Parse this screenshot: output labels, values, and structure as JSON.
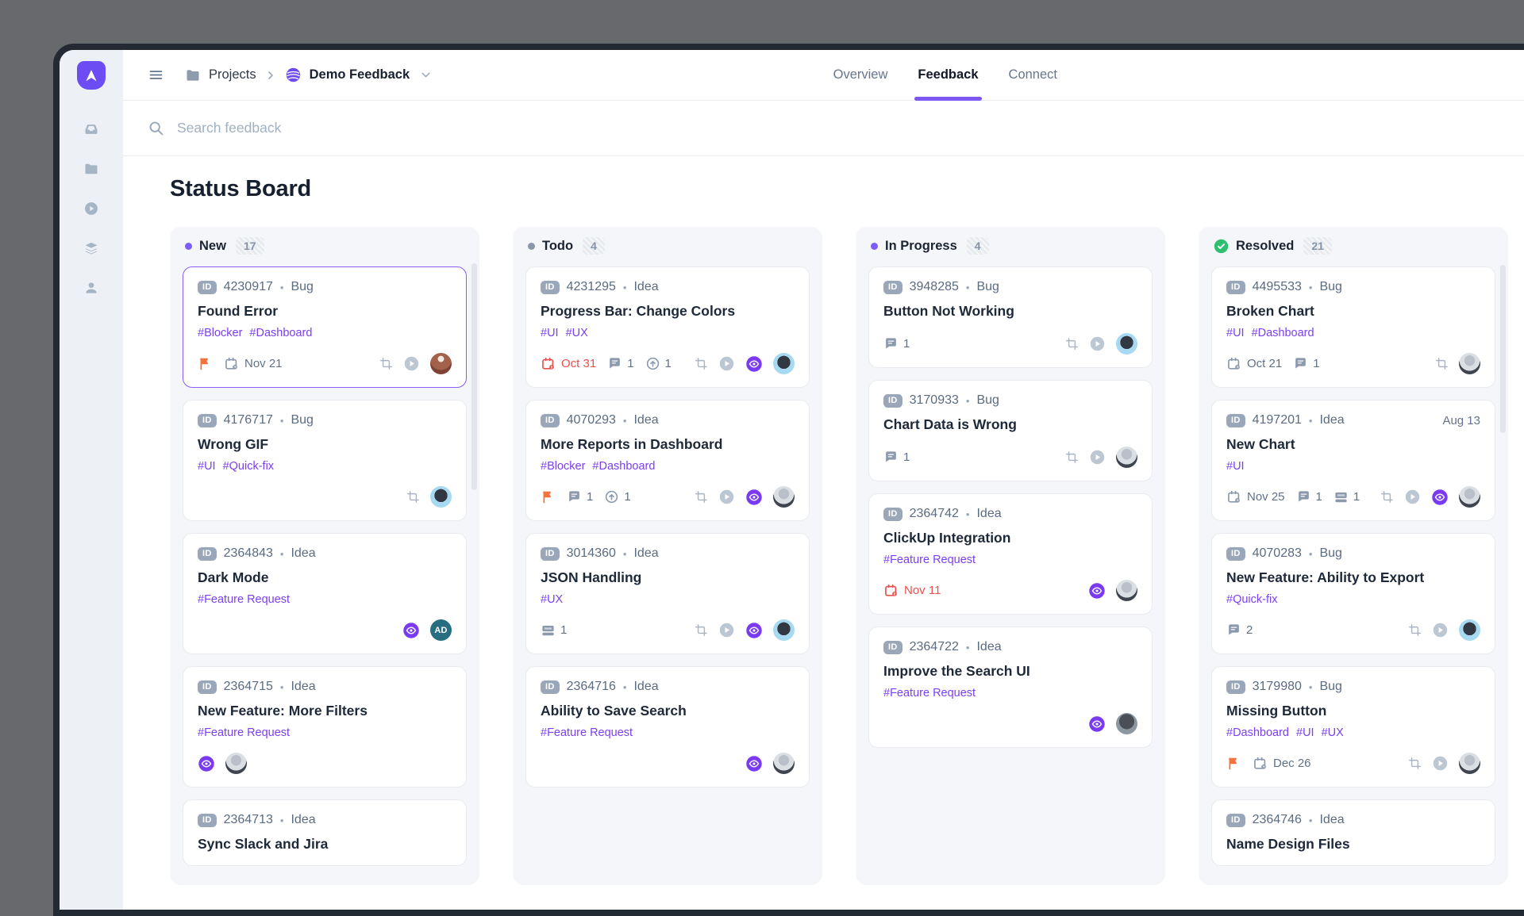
{
  "topbar": {
    "breadcrumb": {
      "root": "Projects",
      "project": "Demo Feedback"
    },
    "tabs": [
      {
        "label": "Overview",
        "active": false
      },
      {
        "label": "Feedback",
        "active": true
      },
      {
        "label": "Connect",
        "active": false
      }
    ]
  },
  "sidebar": {
    "logo_icon": "app-logo",
    "items": [
      {
        "icon": "inbox"
      },
      {
        "icon": "folder"
      },
      {
        "icon": "play-circle"
      },
      {
        "icon": "layers"
      },
      {
        "icon": "user"
      }
    ]
  },
  "search": {
    "placeholder": "Search feedback"
  },
  "colors": {
    "accent_purple": "#7b57f3",
    "tag_purple": "#7b3ff2",
    "flag_orange": "#f4723c",
    "overdue_red": "#e8504d",
    "resolved_green": "#2fbf71",
    "todo_dot_gray": "#8a97a9"
  },
  "board": {
    "title": "Status Board",
    "columns": [
      {
        "name": "New",
        "count": "17",
        "header_style": "dot",
        "dot_color": "#7c5cfa",
        "scrollbar": true,
        "cards": [
          {
            "id": "4230917",
            "type": "Bug",
            "title": "Found Error",
            "tags": [
              "#Blocker",
              "#Dashboard"
            ],
            "selected": true,
            "meta": [
              {
                "icon": "flag"
              },
              {
                "icon": "calendar",
                "tone": "gray",
                "text": "Nov 21"
              }
            ],
            "actions": [
              "frame",
              "play"
            ],
            "avatar": {
              "style": "knight"
            }
          },
          {
            "id": "4176717",
            "type": "Bug",
            "title": "Wrong GIF",
            "tags": [
              "#UI",
              "#Quick-fix"
            ],
            "meta": [],
            "actions": [
              "frame"
            ],
            "avatar": {
              "style": "marcus"
            }
          },
          {
            "id": "2364843",
            "type": "Idea",
            "title": "Dark Mode",
            "tags": [
              "#Feature Request"
            ],
            "meta": [],
            "actions": [
              "eye"
            ],
            "avatar": {
              "style": "initials",
              "initials": "AD"
            }
          },
          {
            "id": "2364715",
            "type": "Idea",
            "title": "New Feature: More Filters",
            "tags": [
              "#Feature Request"
            ],
            "meta": [],
            "actions": [
              "eye"
            ],
            "avatar": {
              "style": "suit"
            },
            "footer_align": "left"
          },
          {
            "id": "2364713",
            "type": "Idea",
            "title": "Sync Slack and Jira",
            "tags": [],
            "meta": [],
            "actions": [],
            "avatar": null,
            "truncated": true
          }
        ]
      },
      {
        "name": "Todo",
        "count": "4",
        "header_style": "dot",
        "dot_color": "#8a97a9",
        "scrollbar": false,
        "cards": [
          {
            "id": "4231295",
            "type": "Idea",
            "title": "Progress Bar: Change Colors",
            "tags": [
              "#UI",
              "#UX"
            ],
            "meta": [
              {
                "icon": "calendar",
                "tone": "red",
                "text": "Oct 31"
              },
              {
                "icon": "comment",
                "text": "1"
              },
              {
                "icon": "upvote",
                "text": "1"
              }
            ],
            "actions": [
              "frame",
              "play",
              "eye"
            ],
            "avatar": {
              "style": "marcus"
            }
          },
          {
            "id": "4070293",
            "type": "Idea",
            "title": "More Reports in Dashboard",
            "tags": [
              "#Blocker",
              "#Dashboard"
            ],
            "meta": [
              {
                "icon": "flag"
              },
              {
                "icon": "comment",
                "text": "1"
              },
              {
                "icon": "upvote",
                "text": "1"
              }
            ],
            "actions": [
              "frame",
              "play",
              "eye"
            ],
            "avatar": {
              "style": "suit"
            }
          },
          {
            "id": "3014360",
            "type": "Idea",
            "title": "JSON Handling",
            "tags": [
              "#UX"
            ],
            "meta": [
              {
                "icon": "screens",
                "text": "1"
              }
            ],
            "actions": [
              "frame",
              "play",
              "eye"
            ],
            "avatar": {
              "style": "marcus"
            }
          },
          {
            "id": "2364716",
            "type": "Idea",
            "title": "Ability to Save Search",
            "tags": [
              "#Feature Request"
            ],
            "meta": [],
            "actions": [
              "eye"
            ],
            "avatar": {
              "style": "suit"
            }
          }
        ]
      },
      {
        "name": "In Progress",
        "count": "4",
        "header_style": "dot",
        "dot_color": "#7c5cfa",
        "scrollbar": false,
        "cards": [
          {
            "id": "3948285",
            "type": "Bug",
            "title": "Button Not Working",
            "tags": [],
            "meta": [
              {
                "icon": "comment",
                "text": "1"
              }
            ],
            "actions": [
              "frame",
              "play"
            ],
            "avatar": {
              "style": "marcus"
            }
          },
          {
            "id": "3170933",
            "type": "Bug",
            "title": "Chart Data is Wrong",
            "tags": [],
            "meta": [
              {
                "icon": "comment",
                "text": "1"
              }
            ],
            "actions": [
              "frame",
              "play"
            ],
            "avatar": {
              "style": "suit"
            }
          },
          {
            "id": "2364742",
            "type": "Idea",
            "title": "ClickUp Integration",
            "tags": [
              "#Feature Request"
            ],
            "meta": [
              {
                "icon": "calendar",
                "tone": "red",
                "text": "Nov 11"
              }
            ],
            "actions": [
              "eye"
            ],
            "avatar": {
              "style": "suit"
            }
          },
          {
            "id": "2364722",
            "type": "Idea",
            "title": "Improve the Search UI",
            "tags": [
              "#Feature Request"
            ],
            "meta": [],
            "actions": [
              "eye"
            ],
            "avatar": {
              "style": "dark"
            }
          }
        ]
      },
      {
        "name": "Resolved",
        "count": "21",
        "header_style": "check",
        "check_color": "#2fbf71",
        "scrollbar": true,
        "cards": [
          {
            "id": "4495533",
            "type": "Bug",
            "title": "Broken Chart",
            "tags": [
              "#UI",
              "#Dashboard"
            ],
            "meta": [
              {
                "icon": "calendar",
                "tone": "gray",
                "text": "Oct 21"
              },
              {
                "icon": "comment",
                "text": "1"
              }
            ],
            "actions": [
              "frame"
            ],
            "avatar": {
              "style": "suit"
            }
          },
          {
            "id": "4197201",
            "type": "Idea",
            "title": "New Chart",
            "tags": [
              "#UI"
            ],
            "corner_date": "Aug 13",
            "meta": [
              {
                "icon": "calendar",
                "tone": "gray",
                "text": "Nov 25"
              },
              {
                "icon": "comment",
                "text": "1"
              },
              {
                "icon": "screens",
                "text": "1"
              }
            ],
            "actions": [
              "frame",
              "play",
              "eye"
            ],
            "avatar": {
              "style": "suit"
            }
          },
          {
            "id": "4070283",
            "type": "Bug",
            "title": "New Feature: Ability to Export",
            "tags": [
              "#Quick-fix"
            ],
            "meta": [
              {
                "icon": "comment",
                "text": "2"
              }
            ],
            "actions": [
              "frame",
              "play"
            ],
            "avatar": {
              "style": "marcus"
            }
          },
          {
            "id": "3179980",
            "type": "Bug",
            "title": "Missing Button",
            "tags": [
              "#Dashboard",
              "#UI",
              "#UX"
            ],
            "meta": [
              {
                "icon": "flag"
              },
              {
                "icon": "calendar",
                "tone": "gray",
                "text": "Dec 26"
              }
            ],
            "actions": [
              "frame",
              "play"
            ],
            "avatar": {
              "style": "suit"
            }
          },
          {
            "id": "2364746",
            "type": "Idea",
            "title": "Name Design Files",
            "tags": [],
            "meta": [],
            "actions": [],
            "avatar": null,
            "truncated": true
          }
        ]
      }
    ]
  }
}
